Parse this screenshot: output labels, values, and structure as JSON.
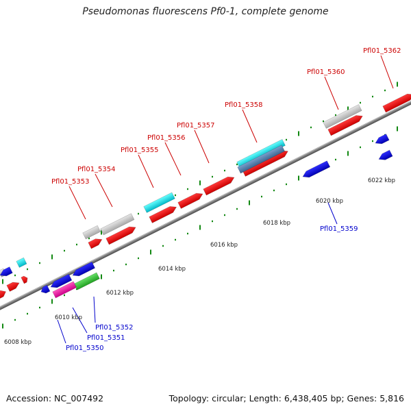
{
  "title": "Pseudomonas fluorescens Pf0-1, complete genome",
  "footer": {
    "accession": "Accession: NC_007492",
    "summary": "Topology: circular; Length: 6,438,405 bp; Genes: 5,816"
  },
  "colors": {
    "forward_label": "#cc0000",
    "reverse_label": "#0000cc",
    "tick": "#118811",
    "backbone": "#808080"
  },
  "tick_labels": [
    "6008 kbp",
    "6010 kbp",
    "6012 kbp",
    "6014 kbp",
    "6016 kbp",
    "6018 kbp",
    "6020 kbp",
    "6022 kbp"
  ],
  "forward_genes": [
    "Pfl01_5353",
    "Pfl01_5354",
    "Pfl01_5355",
    "Pfl01_5356",
    "Pfl01_5357",
    "Pfl01_5358",
    "Pfl01_5360",
    "Pfl01_5362"
  ],
  "reverse_genes": [
    "Pfl01_5350",
    "Pfl01_5351",
    "Pfl01_5352",
    "Pfl01_5359"
  ]
}
